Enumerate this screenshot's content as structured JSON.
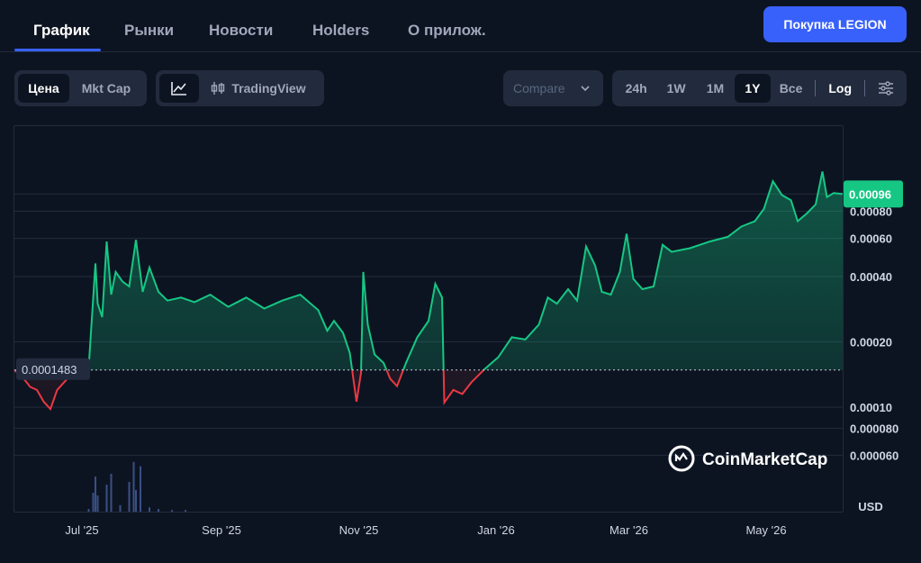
{
  "tabs": [
    "График",
    "Рынки",
    "Новости",
    "Holders",
    "О прилож."
  ],
  "buy_button": "Покупка LEGION",
  "toolbar": {
    "metric": [
      "Цена",
      "Mkt Cap"
    ],
    "view": {
      "line_icon": "line-chart-icon",
      "candle_icon": "candlestick-icon",
      "tradingview": "TradingView"
    },
    "compare": "Compare",
    "ranges": [
      "24h",
      "1W",
      "1M",
      "1Y",
      "Все"
    ],
    "active_range": "1Y",
    "log": "Log",
    "settings_icon": "settings-sliders-icon"
  },
  "colors": {
    "up": "#16c784",
    "down": "#ea3943",
    "accent": "#3861fb",
    "background": "#0d1421"
  },
  "watermark": "CoinMarketCap",
  "chart_data": {
    "type": "area",
    "scale": "log",
    "currency_label": "USD",
    "baseline": 0.0001483,
    "baseline_label": "0.0001483",
    "current_price": 0.00096,
    "current_label": "0.00096",
    "y_ticks": [
      6e-05,
      8e-05,
      0.0001,
      0.0002,
      0.0004,
      0.0006,
      0.0008
    ],
    "y_tick_labels": [
      "0.000060",
      "0.000080",
      "0.00010",
      "0.00020",
      "0.00040",
      "0.00060",
      "0.00080"
    ],
    "x_ticks": [
      "Jul '25",
      "Sep '25",
      "Nov '25",
      "Jan '26",
      "Mar '26",
      "May '26"
    ],
    "x_tick_dates": [
      "2025-07-01",
      "2025-09-01",
      "2025-11-01",
      "2026-01-01",
      "2026-03-01",
      "2026-05-01"
    ],
    "x_range": [
      "2025-06-01",
      "2026-06-04"
    ],
    "series": [
      {
        "points": [
          [
            "2025-06-01",
            0.000148
          ],
          [
            "2025-06-04",
            0.00014
          ],
          [
            "2025-06-08",
            0.000124
          ],
          [
            "2025-06-11",
            0.00012
          ],
          [
            "2025-06-14",
            0.000106
          ],
          [
            "2025-06-17",
            9.8e-05
          ],
          [
            "2025-06-20",
            0.00012
          ],
          [
            "2025-06-25",
            0.000137
          ],
          [
            "2025-06-29",
            0.000146
          ],
          [
            "2025-07-04",
            0.000152
          ],
          [
            "2025-07-07",
            0.00046
          ],
          [
            "2025-07-08",
            0.0003
          ],
          [
            "2025-07-10",
            0.00026
          ],
          [
            "2025-07-12",
            0.00058
          ],
          [
            "2025-07-14",
            0.00033
          ],
          [
            "2025-07-16",
            0.00042
          ],
          [
            "2025-07-19",
            0.00038
          ],
          [
            "2025-07-22",
            0.00036
          ],
          [
            "2025-07-25",
            0.00059
          ],
          [
            "2025-07-28",
            0.00034
          ],
          [
            "2025-07-31",
            0.00044
          ],
          [
            "2025-08-04",
            0.00034
          ],
          [
            "2025-08-08",
            0.00031
          ],
          [
            "2025-08-14",
            0.00032
          ],
          [
            "2025-08-20",
            0.000305
          ],
          [
            "2025-08-27",
            0.00033
          ],
          [
            "2025-09-04",
            0.00029
          ],
          [
            "2025-09-12",
            0.00032
          ],
          [
            "2025-09-20",
            0.000285
          ],
          [
            "2025-09-28",
            0.00031
          ],
          [
            "2025-10-06",
            0.00033
          ],
          [
            "2025-10-14",
            0.00028
          ],
          [
            "2025-10-18",
            0.000225
          ],
          [
            "2025-10-21",
            0.00025
          ],
          [
            "2025-10-25",
            0.00022
          ],
          [
            "2025-10-28",
            0.000178
          ],
          [
            "2025-10-31",
            0.000106
          ],
          [
            "2025-11-02",
            0.000144
          ],
          [
            "2025-11-03",
            0.00042
          ],
          [
            "2025-11-05",
            0.00024
          ],
          [
            "2025-11-08",
            0.000175
          ],
          [
            "2025-11-12",
            0.00016
          ],
          [
            "2025-11-15",
            0.000135
          ],
          [
            "2025-11-18",
            0.000125
          ],
          [
            "2025-11-22",
            0.00016
          ],
          [
            "2025-11-27",
            0.00021
          ],
          [
            "2025-12-02",
            0.00025
          ],
          [
            "2025-12-05",
            0.00037
          ],
          [
            "2025-12-08",
            0.00032
          ],
          [
            "2025-12-09",
            0.000105
          ],
          [
            "2025-12-13",
            0.00012
          ],
          [
            "2025-12-17",
            0.000115
          ],
          [
            "2025-12-21",
            0.00013
          ],
          [
            "2025-12-27",
            0.00015
          ],
          [
            "2026-01-02",
            0.00017
          ],
          [
            "2026-01-08",
            0.00021
          ],
          [
            "2026-01-14",
            0.000205
          ],
          [
            "2026-01-20",
            0.00024
          ],
          [
            "2026-01-24",
            0.00032
          ],
          [
            "2026-01-28",
            0.0003
          ],
          [
            "2026-02-02",
            0.00035
          ],
          [
            "2026-02-06",
            0.00031
          ],
          [
            "2026-02-10",
            0.00055
          ],
          [
            "2026-02-14",
            0.00045
          ],
          [
            "2026-02-17",
            0.00034
          ],
          [
            "2026-02-21",
            0.00033
          ],
          [
            "2026-02-25",
            0.00042
          ],
          [
            "2026-02-28",
            0.00063
          ],
          [
            "2026-03-03",
            0.00039
          ],
          [
            "2026-03-07",
            0.00035
          ],
          [
            "2026-03-12",
            0.00036
          ],
          [
            "2026-03-16",
            0.00056
          ],
          [
            "2026-03-20",
            0.00052
          ],
          [
            "2026-03-28",
            0.00054
          ],
          [
            "2026-04-06",
            0.00058
          ],
          [
            "2026-04-14",
            0.00061
          ],
          [
            "2026-04-20",
            0.00068
          ],
          [
            "2026-04-26",
            0.00072
          ],
          [
            "2026-04-30",
            0.00082
          ],
          [
            "2026-05-04",
            0.0011
          ],
          [
            "2026-05-08",
            0.00095
          ],
          [
            "2026-05-12",
            0.0009
          ],
          [
            "2026-05-15",
            0.00072
          ],
          [
            "2026-05-19",
            0.00078
          ],
          [
            "2026-05-23",
            0.00086
          ],
          [
            "2026-05-26",
            0.00122
          ],
          [
            "2026-05-28",
            0.00093
          ],
          [
            "2026-05-31",
            0.00097
          ],
          [
            "2026-06-04",
            0.00096
          ]
        ]
      }
    ],
    "volume": [
      [
        "2025-07-04",
        0.05
      ],
      [
        "2025-07-06",
        0.35
      ],
      [
        "2025-07-07",
        0.65
      ],
      [
        "2025-07-08",
        0.3
      ],
      [
        "2025-07-12",
        0.5
      ],
      [
        "2025-07-14",
        0.7
      ],
      [
        "2025-07-18",
        0.12
      ],
      [
        "2025-07-22",
        0.55
      ],
      [
        "2025-07-24",
        0.92
      ],
      [
        "2025-07-25",
        0.4
      ],
      [
        "2025-07-27",
        0.84
      ],
      [
        "2025-07-31",
        0.08
      ],
      [
        "2025-08-04",
        0.05
      ],
      [
        "2025-08-10",
        0.03
      ],
      [
        "2025-08-16",
        0.03
      ]
    ]
  }
}
